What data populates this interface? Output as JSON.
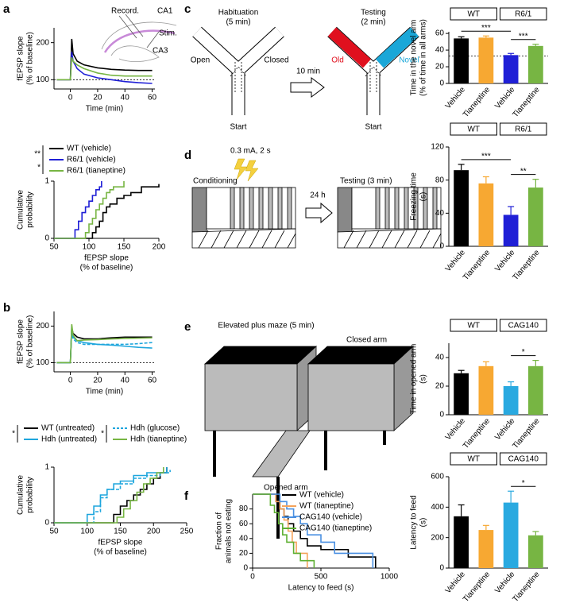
{
  "panel_labels": [
    "a",
    "b",
    "c",
    "d",
    "e",
    "f"
  ],
  "diagrams": {
    "a_inset": {
      "labels": [
        "Record.",
        "CA1",
        "Stim.",
        "CA3"
      ]
    },
    "c": {
      "habituation": [
        "Habituation",
        "(5 min)"
      ],
      "open": "Open",
      "closed": "Closed",
      "start": "Start",
      "delay": "10 min",
      "testing": [
        "Testing",
        "(2 min)"
      ],
      "old": "Old",
      "novel": "Novel",
      "start2": "Start"
    },
    "d": {
      "shock": "0.3 mA, 2 s",
      "conditioning": "Conditioning",
      "delay": "24 h",
      "testing": "Testing (3 min)"
    },
    "e": {
      "title": "Elevated plus maze (5 min)",
      "closed_arm": "Closed arm",
      "opened_arm": "Opened arm"
    }
  },
  "chart_data": [
    {
      "type": "line",
      "x": [
        -10,
        -5,
        0,
        1,
        2,
        5,
        10,
        20,
        30,
        40,
        50,
        60
      ],
      "xlim": [
        -12,
        62
      ],
      "xticks": [
        0,
        20,
        40,
        60
      ],
      "ylim": [
        75,
        240
      ],
      "yticks": [
        100,
        200
      ],
      "x_label": [
        "Time (min)"
      ],
      "y_label": [
        "fEPSP slope",
        "(% of baseline)"
      ],
      "ref_line": 100,
      "series": [
        {
          "name": "WT (vehicle)",
          "color": "#000000",
          "values": [
            100,
            100,
            100,
            210,
            170,
            150,
            140,
            132,
            128,
            126,
            125,
            125
          ]
        },
        {
          "name": "R6/1 (vehicle)",
          "color": "#1f1fd6",
          "values": [
            100,
            100,
            100,
            175,
            150,
            130,
            115,
            105,
            100,
            95,
            92,
            90
          ]
        },
        {
          "name": "R6/1 (tianeptine)",
          "color": "#77b543",
          "values": [
            100,
            100,
            100,
            160,
            150,
            140,
            130,
            118,
            112,
            110,
            110,
            110
          ]
        }
      ],
      "legend_marks": [
        {
          "label": "**",
          "from": 0,
          "to": 1
        },
        {
          "label": "*",
          "from": 1,
          "to": 2
        }
      ]
    },
    {
      "type": "step",
      "xlim": [
        50,
        200
      ],
      "xticks": [
        50,
        100,
        150,
        200
      ],
      "ylim": [
        0,
        1
      ],
      "yticks": [
        0,
        1
      ],
      "x_label": [
        "fEPSP slope",
        "(% of baseline)"
      ],
      "y_label": [
        "Cumulative",
        "probability"
      ],
      "series": [
        {
          "color": "#000000",
          "x": [
            50,
            100,
            105,
            110,
            115,
            120,
            125,
            130,
            140,
            150,
            160,
            175,
            200
          ],
          "values": [
            0,
            0,
            0.1,
            0.2,
            0.3,
            0.45,
            0.55,
            0.6,
            0.7,
            0.75,
            0.8,
            0.9,
            0.95
          ]
        },
        {
          "color": "#1f1fd6",
          "x": [
            50,
            75,
            80,
            85,
            90,
            95,
            100,
            105,
            110,
            115,
            118
          ],
          "values": [
            0,
            0,
            0.15,
            0.3,
            0.45,
            0.55,
            0.65,
            0.75,
            0.85,
            0.9,
            1
          ]
        },
        {
          "color": "#77b543",
          "x": [
            50,
            85,
            95,
            100,
            105,
            110,
            115,
            120,
            125,
            130,
            135,
            150
          ],
          "values": [
            0,
            0,
            0.1,
            0.25,
            0.35,
            0.5,
            0.6,
            0.7,
            0.8,
            0.85,
            0.9,
            1
          ]
        }
      ]
    },
    {
      "type": "line",
      "x": [
        -10,
        -5,
        0,
        1,
        2,
        5,
        10,
        20,
        30,
        40,
        50,
        60
      ],
      "xlim": [
        -12,
        62
      ],
      "xticks": [
        0,
        20,
        40,
        60
      ],
      "ylim": [
        75,
        240
      ],
      "yticks": [
        100,
        200
      ],
      "x_label": [
        "Time (min)"
      ],
      "y_label": [
        "fEPSP slope",
        "(% of baseline)"
      ],
      "ref_line": 100,
      "series": [
        {
          "name": "WT (untreated)",
          "color": "#000000",
          "values": [
            100,
            100,
            100,
            195,
            180,
            170,
            165,
            165,
            168,
            170,
            170,
            170
          ]
        },
        {
          "name": "Hdh (untreated)",
          "color": "#1ea6dd",
          "values": [
            100,
            100,
            100,
            200,
            170,
            160,
            155,
            150,
            148,
            145,
            142,
            140
          ]
        },
        {
          "name": "Hdh (glucose)",
          "color": "#1ea6dd",
          "dash": true,
          "values": [
            100,
            100,
            100,
            190,
            165,
            155,
            150,
            150,
            150,
            150,
            152,
            155
          ]
        },
        {
          "name": "Hdh (tianeptine)",
          "color": "#77b543",
          "values": [
            100,
            100,
            100,
            205,
            175,
            160,
            162,
            163,
            165,
            166,
            167,
            168
          ]
        }
      ],
      "legend_marks": [
        {
          "label": "*",
          "from": 0,
          "to": 1
        },
        {
          "label": "*",
          "from": 2,
          "to": 3
        }
      ]
    },
    {
      "type": "step",
      "xlim": [
        50,
        250
      ],
      "xticks": [
        50,
        100,
        150,
        200,
        250
      ],
      "ylim": [
        0,
        1
      ],
      "yticks": [
        0,
        1
      ],
      "x_label": [
        "fEPSP slope",
        "(% of baseline)"
      ],
      "y_label": [
        "Cumulative",
        "probability"
      ],
      "series": [
        {
          "color": "#000000",
          "x": [
            50,
            130,
            140,
            150,
            160,
            170,
            180,
            190,
            200,
            210,
            220
          ],
          "values": [
            0,
            0,
            0.15,
            0.3,
            0.4,
            0.5,
            0.6,
            0.7,
            0.8,
            0.9,
            1
          ]
        },
        {
          "color": "#1ea6dd",
          "x": [
            50,
            95,
            100,
            110,
            120,
            130,
            140,
            150,
            170,
            190,
            220
          ],
          "values": [
            0,
            0,
            0.15,
            0.3,
            0.5,
            0.6,
            0.7,
            0.75,
            0.85,
            0.9,
            1
          ]
        },
        {
          "color": "#1ea6dd",
          "dash": true,
          "x": [
            50,
            105,
            110,
            120,
            130,
            150,
            170,
            190,
            210,
            225
          ],
          "values": [
            0,
            0,
            0.2,
            0.45,
            0.6,
            0.7,
            0.8,
            0.85,
            0.9,
            0.95
          ]
        },
        {
          "color": "#77b543",
          "x": [
            50,
            135,
            145,
            155,
            165,
            175,
            185,
            195,
            205,
            215
          ],
          "values": [
            0,
            0,
            0.1,
            0.25,
            0.4,
            0.55,
            0.7,
            0.8,
            0.9,
            1
          ]
        }
      ]
    },
    {
      "type": "bar",
      "categories": [
        "Vehicle",
        "Tianeptine",
        "Vehicle",
        "Tianeptine"
      ],
      "groups": [
        "WT",
        "R6/1"
      ],
      "values": [
        54,
        55,
        34,
        45
      ],
      "errors": [
        2,
        2,
        2,
        2
      ],
      "colors": [
        "#000000",
        "#f7a832",
        "#1f1fd6",
        "#77b543"
      ],
      "ylim": [
        0,
        62
      ],
      "yticks": [
        0,
        20,
        40,
        60
      ],
      "y_label": [
        "Time in the novel arm",
        "(% of time in all arms)"
      ],
      "ref_line": 33,
      "significance": [
        {
          "label": "***",
          "from": 0,
          "to": 2
        },
        {
          "label": "***",
          "from": 2,
          "to": 3
        }
      ]
    },
    {
      "type": "bar",
      "categories": [
        "Vehicle",
        "Tianeptine",
        "Vehicle",
        "Tianeptine"
      ],
      "groups": [
        "WT",
        "R6/1"
      ],
      "values": [
        92,
        76,
        38,
        71
      ],
      "errors": [
        7,
        8,
        10,
        10
      ],
      "colors": [
        "#000000",
        "#f7a832",
        "#1f1fd6",
        "#77b543"
      ],
      "ylim": [
        0,
        120
      ],
      "yticks": [
        0,
        40,
        80,
        120
      ],
      "y_label": [
        "Freezing time",
        "(s)"
      ],
      "significance": [
        {
          "label": "***",
          "from": 0,
          "to": 2
        },
        {
          "label": "**",
          "from": 2,
          "to": 3
        }
      ]
    },
    {
      "type": "bar",
      "categories": [
        "Vehicle",
        "Tianeptine",
        "Vehicle",
        "Tianeptine"
      ],
      "groups": [
        "WT",
        "CAG140"
      ],
      "values": [
        29,
        34,
        20,
        34
      ],
      "errors": [
        2,
        3,
        3,
        4
      ],
      "colors": [
        "#000000",
        "#f7a832",
        "#29a9e0",
        "#77b543"
      ],
      "ylim": [
        0,
        50
      ],
      "yticks": [
        0,
        20,
        40
      ],
      "y_label": [
        "Time in opened arm",
        "(s)"
      ],
      "significance": [
        {
          "label": "*",
          "from": 2,
          "to": 3
        }
      ]
    },
    {
      "type": "step",
      "xlim": [
        0,
        1000
      ],
      "xticks": [
        0,
        500,
        1000
      ],
      "ylim": [
        0,
        100
      ],
      "yticks": [
        0,
        20,
        40,
        60,
        80
      ],
      "x_label": [
        "Latency to feed (s)"
      ],
      "y_label": [
        "Fraction of",
        "animals not eating"
      ],
      "series": [
        {
          "name": "WT (vehicle)",
          "color": "#000000",
          "x": [
            0,
            130,
            170,
            200,
            230,
            260,
            300,
            350,
            400,
            500,
            700,
            850,
            900
          ],
          "values": [
            100,
            100,
            90,
            80,
            70,
            60,
            50,
            40,
            30,
            25,
            15,
            15,
            0
          ]
        },
        {
          "name": "WT (tianeptine)",
          "color": "#f5a35b",
          "x": [
            0,
            140,
            170,
            200,
            230,
            260,
            290,
            320,
            400
          ],
          "values": [
            100,
            100,
            90,
            80,
            65,
            50,
            35,
            20,
            0
          ]
        },
        {
          "name": "CAG140 (vehicle)",
          "color": "#4a90e2",
          "x": [
            0,
            150,
            200,
            250,
            300,
            350,
            400,
            500,
            600,
            800,
            880
          ],
          "values": [
            100,
            100,
            90,
            80,
            70,
            60,
            45,
            35,
            20,
            20,
            0
          ]
        },
        {
          "name": "CAG140 (tianeptine)",
          "color": "#5fb033",
          "x": [
            0,
            100,
            130,
            160,
            190,
            220,
            250,
            300,
            350,
            450
          ],
          "values": [
            100,
            100,
            85,
            75,
            60,
            45,
            35,
            20,
            10,
            0
          ]
        }
      ]
    },
    {
      "type": "bar",
      "categories": [
        "Vehicle",
        "Tianeptine",
        "Vehicle",
        "Tianeptine"
      ],
      "groups": [
        "WT",
        "CAG140"
      ],
      "values": [
        340,
        250,
        430,
        215
      ],
      "errors": [
        75,
        30,
        75,
        25
      ],
      "colors": [
        "#000000",
        "#f7a832",
        "#29a9e0",
        "#77b543"
      ],
      "ylim": [
        0,
        600
      ],
      "yticks": [
        0,
        200,
        400,
        600
      ],
      "y_label": [
        "Latency to feed",
        "(s)"
      ],
      "significance": [
        {
          "label": "*",
          "from": 2,
          "to": 3
        }
      ]
    }
  ]
}
